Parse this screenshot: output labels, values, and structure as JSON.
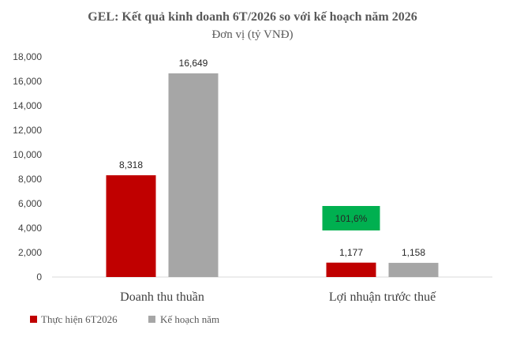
{
  "chart_data": {
    "type": "bar",
    "title": "GEL: Kết quả kinh doanh 6T/2026 so với kế hoạch năm 2026",
    "subtitle": "Đơn vị (tỷ VNĐ)",
    "categories": [
      "Doanh thu thuần",
      "Lợi nhuận trước thuế"
    ],
    "series": [
      {
        "name": "Thực hiện 6T2026",
        "values": [
          8318,
          1177
        ],
        "labels": [
          "8,318",
          "1,177"
        ],
        "color": "#c00000"
      },
      {
        "name": "Kế hoạch năm",
        "values": [
          16649,
          1158
        ],
        "labels": [
          "16,649",
          "1,158"
        ],
        "color": "#a6a6a6"
      }
    ],
    "ylim": [
      0,
      18000
    ],
    "yticks": [
      0,
      2000,
      4000,
      6000,
      8000,
      10000,
      12000,
      14000,
      16000,
      18000
    ],
    "ytick_labels": [
      "0",
      "2,000",
      "4,000",
      "6,000",
      "8,000",
      "10,000",
      "12,000",
      "14,000",
      "16,000",
      "18,000"
    ],
    "grid": false,
    "legend": "bottom-left",
    "annotation": {
      "text": "101,6%",
      "category": "Lợi nhuận trước thuế",
      "color": "#00b050"
    }
  }
}
